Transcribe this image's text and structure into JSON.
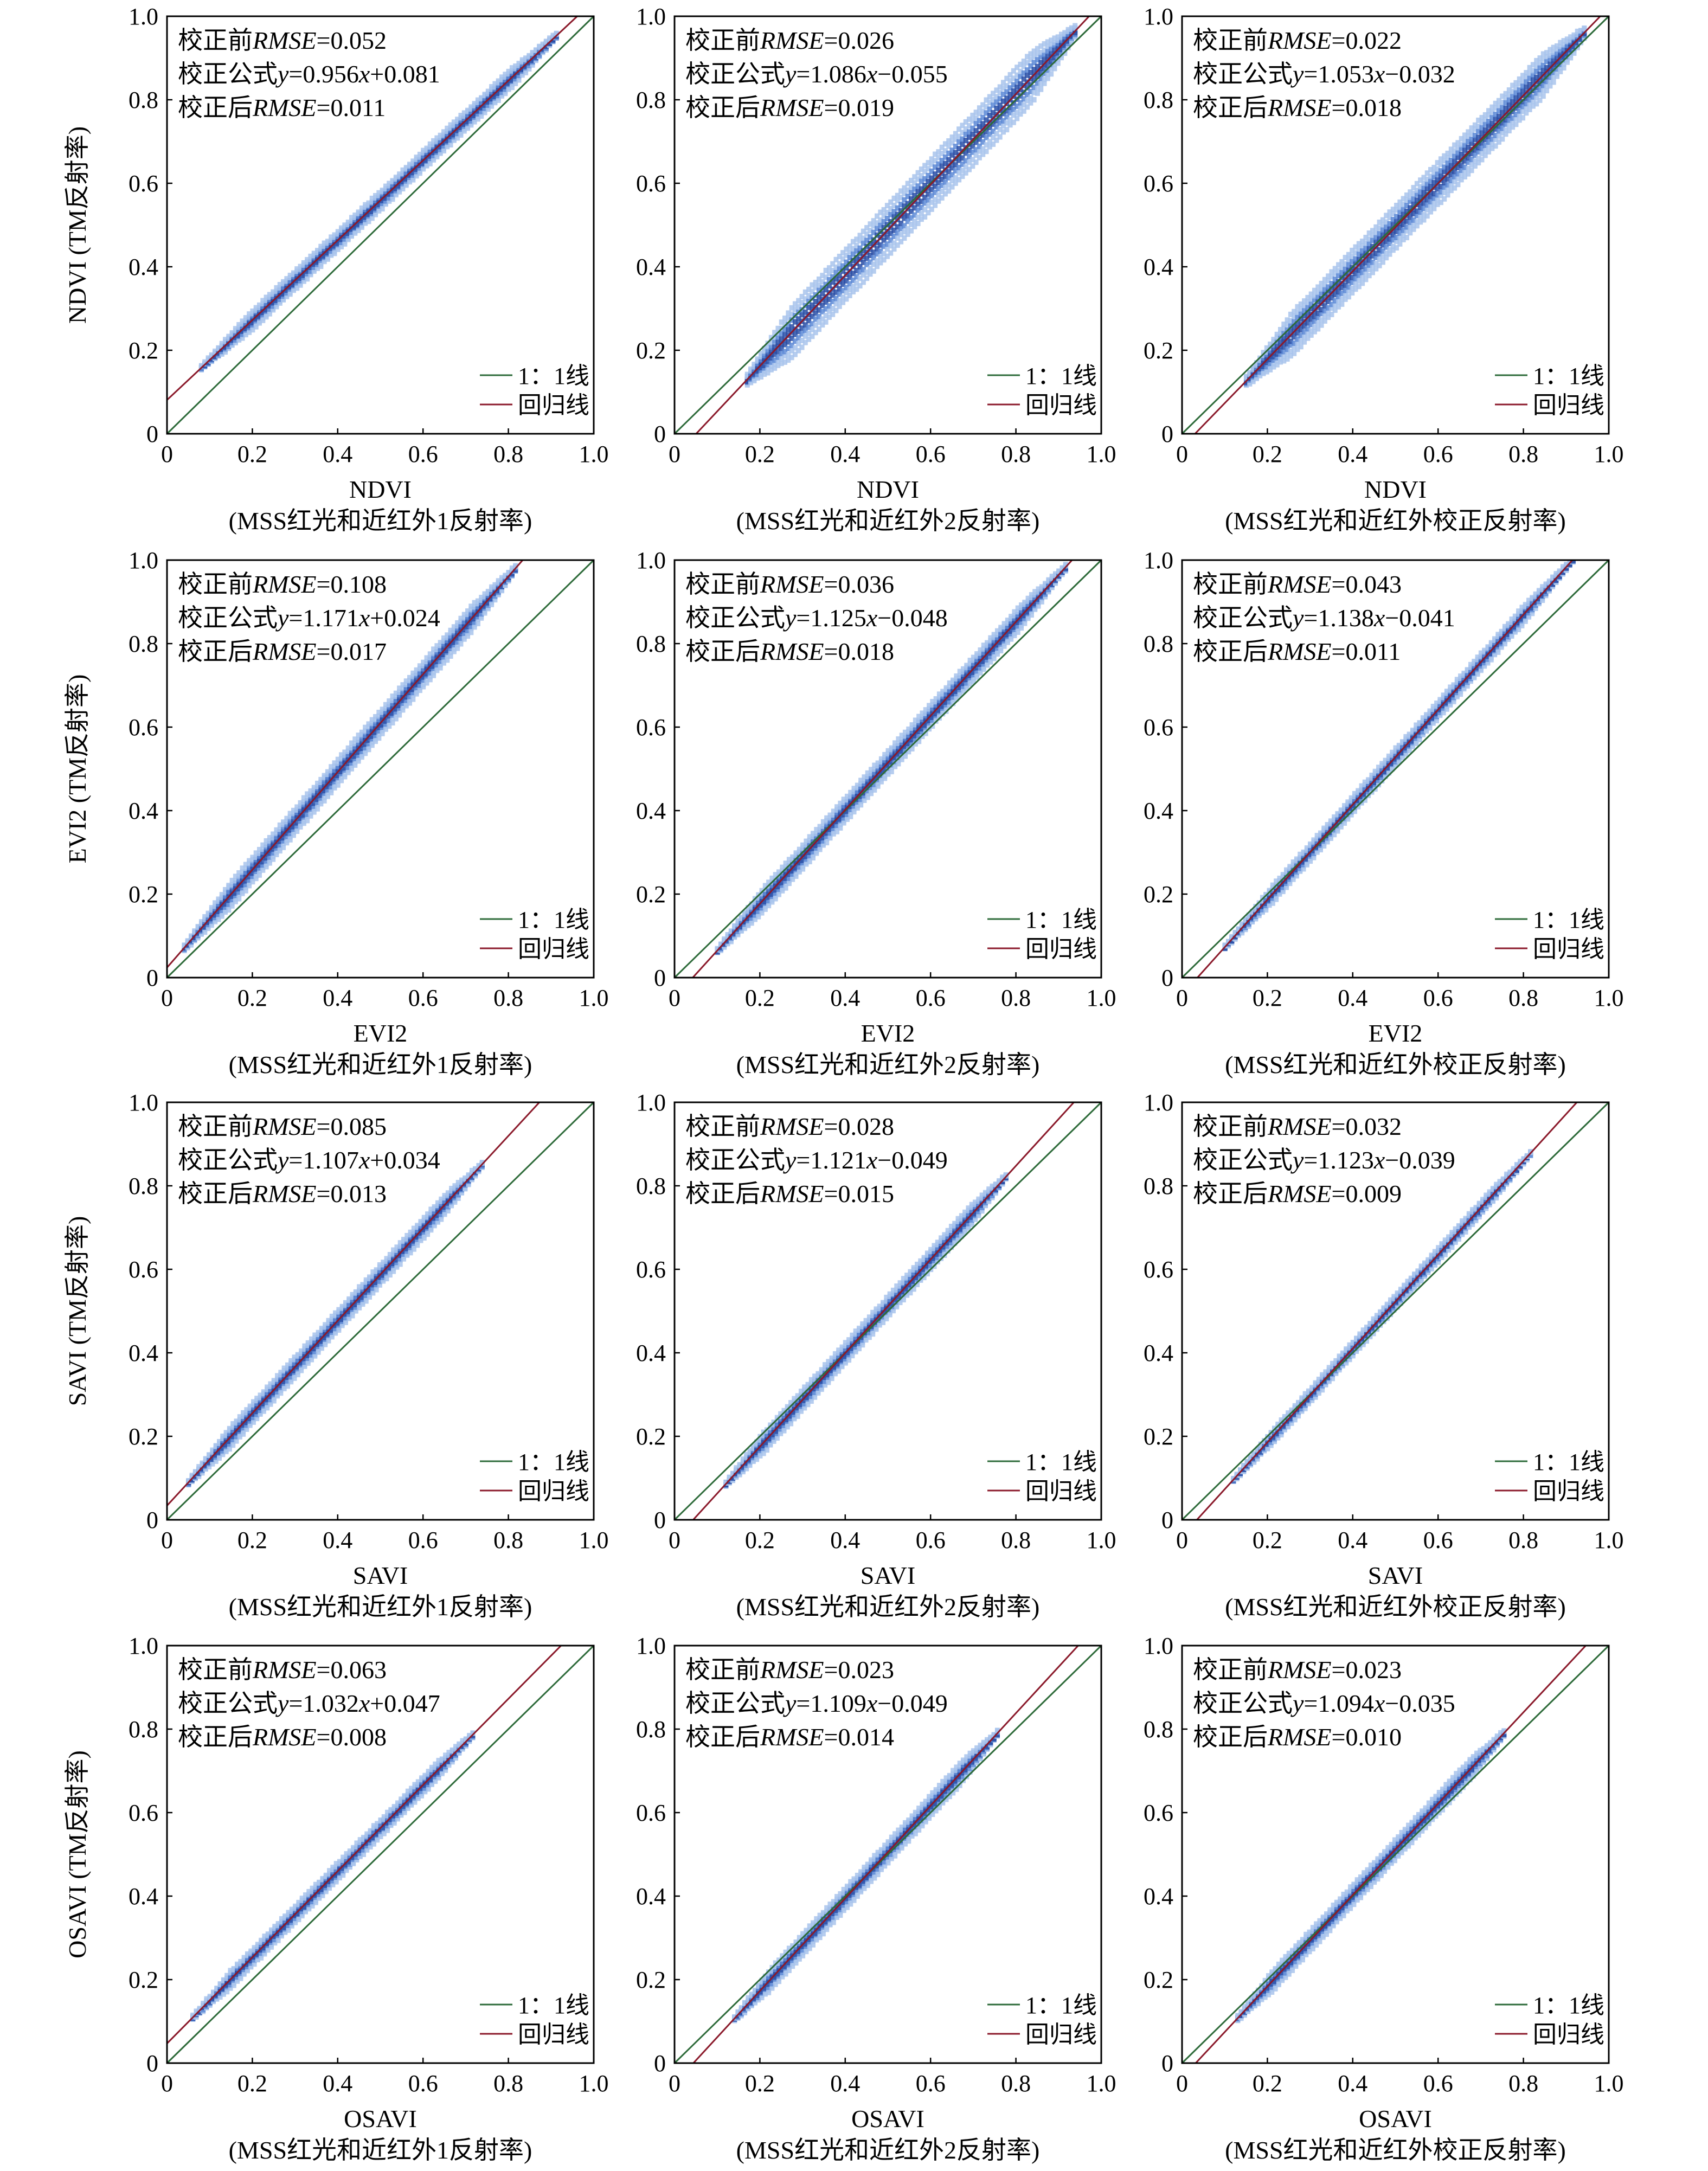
{
  "legend": {
    "identity_label": "1：1线",
    "regression_label": "回归线"
  },
  "colors": {
    "identity_line": "#2e6b3a",
    "regression_line": "#8b1a2b",
    "density_light": "#a9c4ec",
    "density_mid": "#5d89d6",
    "density_dark": "#2a4fa6",
    "axis": "#000000"
  },
  "annotation_labels": {
    "before": "校正前",
    "formula": "校正公式",
    "after": "校正后",
    "rmse": "RMSE"
  },
  "column_xlabels": [
    "(MSS红光和近红外1反射率)",
    "(MSS红光和近红外2反射率)",
    "(MSS红光和近红外校正反射率)"
  ],
  "rows": [
    {
      "index": "NDVI",
      "ylabel": "NDVI (TM反射率)"
    },
    {
      "index": "EVI2",
      "ylabel": "EVI2 (TM反射率)"
    },
    {
      "index": "SAVI",
      "ylabel": "SAVI (TM反射率)"
    },
    {
      "index": "OSAVI",
      "ylabel": "OSAVI (TM反射率)"
    }
  ],
  "chart_data": [
    {
      "type": "scatter",
      "row": 0,
      "col": 0,
      "xlim": [
        0,
        1
      ],
      "ylim": [
        0,
        1
      ],
      "ticks": [
        "0",
        "0.2",
        "0.4",
        "0.6",
        "0.8",
        "1.0"
      ],
      "xlabel": "NDVI",
      "subxlabel": "(MSS红光和近红外1反射率)",
      "ylabel": "NDVI (TM反射率)",
      "rmse_before": "0.052",
      "slope": "0.956",
      "intercept_text": "+0.081",
      "slope_value": 0.956,
      "intercept": 0.081,
      "rmse_after": "0.011",
      "x_range": [
        0.08,
        0.92
      ],
      "spread": 0.022
    },
    {
      "type": "scatter",
      "row": 0,
      "col": 1,
      "xlim": [
        0,
        1
      ],
      "ylim": [
        0,
        1
      ],
      "ticks": [
        "0",
        "0.2",
        "0.4",
        "0.6",
        "0.8",
        "1.0"
      ],
      "xlabel": "NDVI",
      "subxlabel": "(MSS红光和近红外2反射率)",
      "ylabel": "",
      "rmse_before": "0.026",
      "slope": "1.086",
      "intercept_text": "−0.055",
      "slope_value": 1.086,
      "intercept": -0.055,
      "rmse_after": "0.019",
      "x_range": [
        0.17,
        0.94
      ],
      "spread": 0.06
    },
    {
      "type": "scatter",
      "row": 0,
      "col": 2,
      "xlim": [
        0,
        1
      ],
      "ylim": [
        0,
        1
      ],
      "ticks": [
        "0",
        "0.2",
        "0.4",
        "0.6",
        "0.8",
        "1.0"
      ],
      "xlabel": "NDVI",
      "subxlabel": "(MSS红光和近红外校正反射率)",
      "ylabel": "",
      "rmse_before": "0.022",
      "slope": "1.053",
      "intercept_text": "−0.032",
      "slope_value": 1.053,
      "intercept": -0.032,
      "rmse_after": "0.018",
      "x_range": [
        0.15,
        0.95
      ],
      "spread": 0.05
    },
    {
      "type": "scatter",
      "row": 1,
      "col": 0,
      "xlim": [
        0,
        1
      ],
      "ylim": [
        0,
        1
      ],
      "ticks": [
        "0",
        "0.2",
        "0.4",
        "0.6",
        "0.8",
        "1.0"
      ],
      "xlabel": "EVI2",
      "subxlabel": "(MSS红光和近红外1反射率)",
      "ylabel": "EVI2 (TM反射率)",
      "rmse_before": "0.108",
      "slope": "1.171",
      "intercept_text": "+0.024",
      "slope_value": 1.171,
      "intercept": 0.024,
      "rmse_after": "0.017",
      "x_range": [
        0.04,
        0.82
      ],
      "spread": 0.03
    },
    {
      "type": "scatter",
      "row": 1,
      "col": 1,
      "xlim": [
        0,
        1
      ],
      "ylim": [
        0,
        1
      ],
      "ticks": [
        "0",
        "0.2",
        "0.4",
        "0.6",
        "0.8",
        "1.0"
      ],
      "xlabel": "EVI2",
      "subxlabel": "(MSS红光和近红外2反射率)",
      "ylabel": "",
      "rmse_before": "0.036",
      "slope": "1.125",
      "intercept_text": "−0.048",
      "slope_value": 1.125,
      "intercept": -0.048,
      "rmse_after": "0.018",
      "x_range": [
        0.1,
        0.92
      ],
      "spread": 0.028
    },
    {
      "type": "scatter",
      "row": 1,
      "col": 2,
      "xlim": [
        0,
        1
      ],
      "ylim": [
        0,
        1
      ],
      "ticks": [
        "0",
        "0.2",
        "0.4",
        "0.6",
        "0.8",
        "1.0"
      ],
      "xlabel": "EVI2",
      "subxlabel": "(MSS红光和近红外校正反射率)",
      "ylabel": "",
      "rmse_before": "0.043",
      "slope": "1.138",
      "intercept_text": "−0.041",
      "slope_value": 1.138,
      "intercept": -0.041,
      "rmse_after": "0.011",
      "x_range": [
        0.1,
        0.92
      ],
      "spread": 0.02
    },
    {
      "type": "scatter",
      "row": 2,
      "col": 0,
      "xlim": [
        0,
        1
      ],
      "ylim": [
        0,
        1
      ],
      "ticks": [
        "0",
        "0.2",
        "0.4",
        "0.6",
        "0.8",
        "1.0"
      ],
      "xlabel": "SAVI",
      "subxlabel": "(MSS红光和近红外1反射率)",
      "ylabel": "SAVI (TM反射率)",
      "rmse_before": "0.085",
      "slope": "1.107",
      "intercept_text": "+0.034",
      "slope_value": 1.107,
      "intercept": 0.034,
      "rmse_after": "0.013",
      "x_range": [
        0.05,
        0.74
      ],
      "spread": 0.024
    },
    {
      "type": "scatter",
      "row": 2,
      "col": 1,
      "xlim": [
        0,
        1
      ],
      "ylim": [
        0,
        1
      ],
      "ticks": [
        "0",
        "0.2",
        "0.4",
        "0.6",
        "0.8",
        "1.0"
      ],
      "xlabel": "SAVI",
      "subxlabel": "(MSS红光和近红外2反射率)",
      "ylabel": "",
      "rmse_before": "0.028",
      "slope": "1.121",
      "intercept_text": "−0.049",
      "slope_value": 1.121,
      "intercept": -0.049,
      "rmse_after": "0.015",
      "x_range": [
        0.12,
        0.78
      ],
      "spread": 0.024
    },
    {
      "type": "scatter",
      "row": 2,
      "col": 2,
      "xlim": [
        0,
        1
      ],
      "ylim": [
        0,
        1
      ],
      "ticks": [
        "0",
        "0.2",
        "0.4",
        "0.6",
        "0.8",
        "1.0"
      ],
      "xlabel": "SAVI",
      "subxlabel": "(MSS红光和近红外校正反射率)",
      "ylabel": "",
      "rmse_before": "0.032",
      "slope": "1.123",
      "intercept_text": "−0.039",
      "slope_value": 1.123,
      "intercept": -0.039,
      "rmse_after": "0.009",
      "x_range": [
        0.12,
        0.82
      ],
      "spread": 0.016
    },
    {
      "type": "scatter",
      "row": 3,
      "col": 0,
      "xlim": [
        0,
        1
      ],
      "ylim": [
        0,
        1
      ],
      "ticks": [
        "0",
        "0.2",
        "0.4",
        "0.6",
        "0.8",
        "1.0"
      ],
      "xlabel": "OSAVI",
      "subxlabel": "(MSS红光和近红外1反射率)",
      "ylabel": "OSAVI (TM反射率)",
      "rmse_before": "0.063",
      "slope": "1.032",
      "intercept_text": "+0.047",
      "slope_value": 1.032,
      "intercept": 0.047,
      "rmse_after": "0.008",
      "x_range": [
        0.06,
        0.72
      ],
      "spread": 0.02
    },
    {
      "type": "scatter",
      "row": 3,
      "col": 1,
      "xlim": [
        0,
        1
      ],
      "ylim": [
        0,
        1
      ],
      "ticks": [
        "0",
        "0.2",
        "0.4",
        "0.6",
        "0.8",
        "1.0"
      ],
      "xlabel": "OSAVI",
      "subxlabel": "(MSS红光和近红外2反射率)",
      "ylabel": "",
      "rmse_before": "0.023",
      "slope": "1.109",
      "intercept_text": "−0.049",
      "slope_value": 1.109,
      "intercept": -0.049,
      "rmse_after": "0.014",
      "x_range": [
        0.14,
        0.76
      ],
      "spread": 0.025
    },
    {
      "type": "scatter",
      "row": 3,
      "col": 2,
      "xlim": [
        0,
        1
      ],
      "ylim": [
        0,
        1
      ],
      "ticks": [
        "0",
        "0.2",
        "0.4",
        "0.6",
        "0.8",
        "1.0"
      ],
      "xlabel": "OSAVI",
      "subxlabel": "(MSS红光和近红外校正反射率)",
      "ylabel": "",
      "rmse_before": "0.023",
      "slope": "1.094",
      "intercept_text": "−0.035",
      "slope_value": 1.094,
      "intercept": -0.035,
      "rmse_after": "0.010",
      "x_range": [
        0.13,
        0.76
      ],
      "spread": 0.024
    }
  ]
}
